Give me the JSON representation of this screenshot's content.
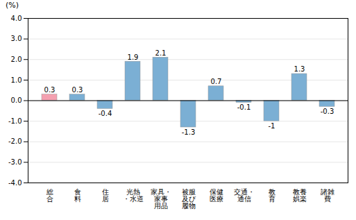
{
  "chart_data": {
    "type": "bar",
    "categories": [
      "総\n合",
      "食\n料",
      "住\n居",
      "光熱\n・水道",
      "家具・\n家事\n用品",
      "被服\n及び\n履物",
      "保健\n医療",
      "交通・\n通信",
      "教\n育",
      "教養\n娯楽",
      "諸雑\n費"
    ],
    "values": [
      0.3,
      0.3,
      -0.4,
      1.9,
      2.1,
      -1.3,
      0.7,
      -0.1,
      -1.0,
      1.3,
      -0.3
    ],
    "colors": [
      "#f4a0b0",
      "#7bafd4",
      "#7bafd4",
      "#7bafd4",
      "#7bafd4",
      "#7bafd4",
      "#7bafd4",
      "#7bafd4",
      "#7bafd4",
      "#7bafd4",
      "#7bafd4"
    ],
    "y_label": "(%)",
    "ylim": [
      -4.0,
      4.0
    ],
    "yticks": [
      {
        "value": -4.0,
        "label": "-4.0"
      },
      {
        "value": -3.0,
        "label": "-3.0"
      },
      {
        "value": -2.0,
        "label": "-2.0"
      },
      {
        "value": -1.0,
        "label": "-1.0"
      },
      {
        "value": 0.0,
        "label": "0.0"
      },
      {
        "value": 1.0,
        "label": "1.0"
      },
      {
        "value": 2.0,
        "label": "2.0"
      },
      {
        "value": 3.0,
        "label": "3.0"
      },
      {
        "value": 4.0,
        "label": "4.0"
      }
    ],
    "grid": true,
    "data_labels": true
  }
}
